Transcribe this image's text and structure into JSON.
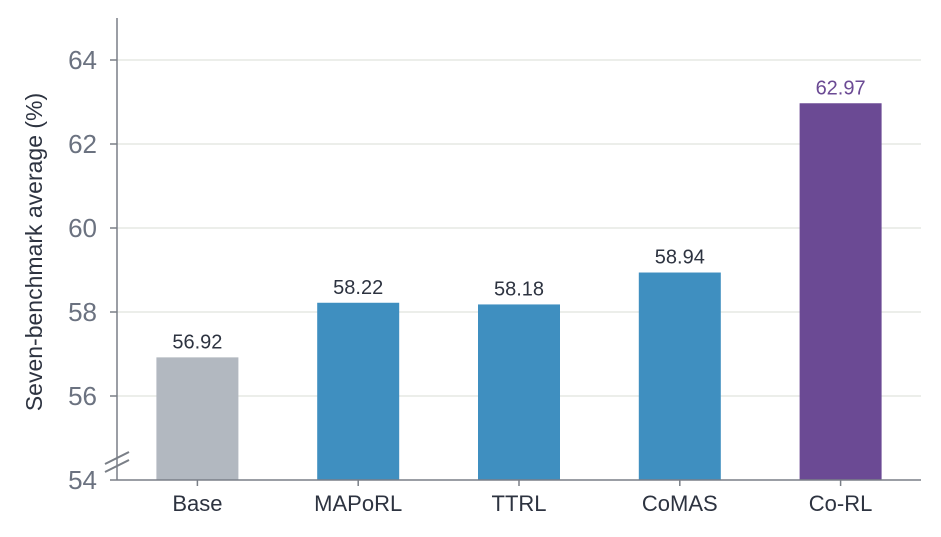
{
  "chart_data": {
    "type": "bar",
    "categories": [
      "Base",
      "MAPoRL",
      "TTRL",
      "CoMAS",
      "Co-RL"
    ],
    "values": [
      56.92,
      58.22,
      58.18,
      58.94,
      62.97
    ],
    "value_labels": [
      "56.92",
      "58.22",
      "58.18",
      "58.94",
      "62.97"
    ],
    "colors": [
      "#b2b8c0",
      "#3f8fc0",
      "#3f8fc0",
      "#3f8fc0",
      "#6b4a94"
    ],
    "value_label_colors": [
      "#2d3340",
      "#2d3340",
      "#2d3340",
      "#2d3340",
      "#6b4a94"
    ],
    "ylabel": "Seven-benchmark average (%)",
    "xlabel": "",
    "title": "",
    "ylim": [
      54,
      65
    ],
    "yticks": [
      54,
      56,
      58,
      60,
      62,
      64
    ],
    "ytick_labels": [
      "54",
      "56",
      "58",
      "60",
      "62",
      "64"
    ],
    "axis_break": true,
    "grid": "horizontal"
  }
}
